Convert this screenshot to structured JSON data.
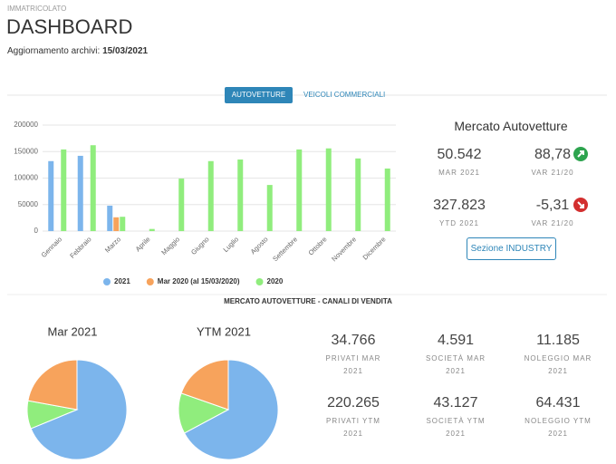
{
  "header": {
    "section": "IMMATRICOLATO",
    "title": "DASHBOARD",
    "update_label": "Aggiornamento archivi:",
    "update_date": "15/03/2021"
  },
  "tabs": [
    {
      "label": "AUTOVETTURE",
      "active": true
    },
    {
      "label": "VEICOLI COMMERCIALI",
      "active": false
    }
  ],
  "market": {
    "title": "Mercato Autovetture",
    "items": [
      {
        "value": "50.542",
        "label": "MAR 2021"
      },
      {
        "value": "88,78",
        "label": "VAR 21/20",
        "trend": "up"
      },
      {
        "value": "327.823",
        "label": "YTD 2021"
      },
      {
        "value": "-5,31",
        "label": "VAR 21/20",
        "trend": "down"
      }
    ],
    "button": "Sezione INDUSTRY"
  },
  "channels": {
    "title": "MERCATO AUTOVETTURE - CANALI DI VENDITA",
    "items": [
      {
        "value": "34.766",
        "label": "PRIVATI MAR 2021"
      },
      {
        "value": "4.591",
        "label": "SOCIETÀ MAR 2021"
      },
      {
        "value": "11.185",
        "label": "NOLEGGIO MAR 2021"
      },
      {
        "value": "220.265",
        "label": "PRIVATI YTM 2021"
      },
      {
        "value": "43.127",
        "label": "SOCIETÀ YTM 2021"
      },
      {
        "value": "64.431",
        "label": "NOLEGGIO YTM 2021"
      }
    ]
  },
  "chart_data": [
    {
      "type": "bar",
      "categories": [
        "Gennaio",
        "Febbraio",
        "Marzo",
        "Aprile",
        "Maggio",
        "Giugno",
        "Luglio",
        "Agosto",
        "Settembre",
        "Ottobre",
        "Novembre",
        "Dicembre"
      ],
      "series": [
        {
          "name": "2021",
          "color": "#7cb5ec",
          "values": [
            132000,
            142000,
            48000,
            null,
            null,
            null,
            null,
            null,
            null,
            null,
            null,
            null
          ]
        },
        {
          "name": "Mar 2020 (al 15/03/2020)",
          "color": "#f7a35c",
          "values": [
            null,
            null,
            26000,
            null,
            null,
            null,
            null,
            null,
            null,
            null,
            null,
            null
          ]
        },
        {
          "name": "2020",
          "color": "#90ed7d",
          "values": [
            154000,
            162000,
            27000,
            4000,
            99000,
            132000,
            135000,
            87000,
            154000,
            156000,
            137000,
            118000
          ]
        }
      ],
      "ylim": [
        0,
        200000
      ],
      "yticks": [
        0,
        50000,
        100000,
        150000,
        200000
      ],
      "grid": true,
      "legend": "bottom"
    },
    {
      "type": "pie",
      "title": "Mar 2021",
      "values": [
        34766,
        4591,
        11185
      ],
      "colors": [
        "#7cb5ec",
        "#90ed7d",
        "#f7a35c"
      ]
    },
    {
      "type": "pie",
      "title": "YTM 2021",
      "values": [
        220265,
        43127,
        64431
      ],
      "colors": [
        "#7cb5ec",
        "#90ed7d",
        "#f7a35c"
      ]
    }
  ]
}
